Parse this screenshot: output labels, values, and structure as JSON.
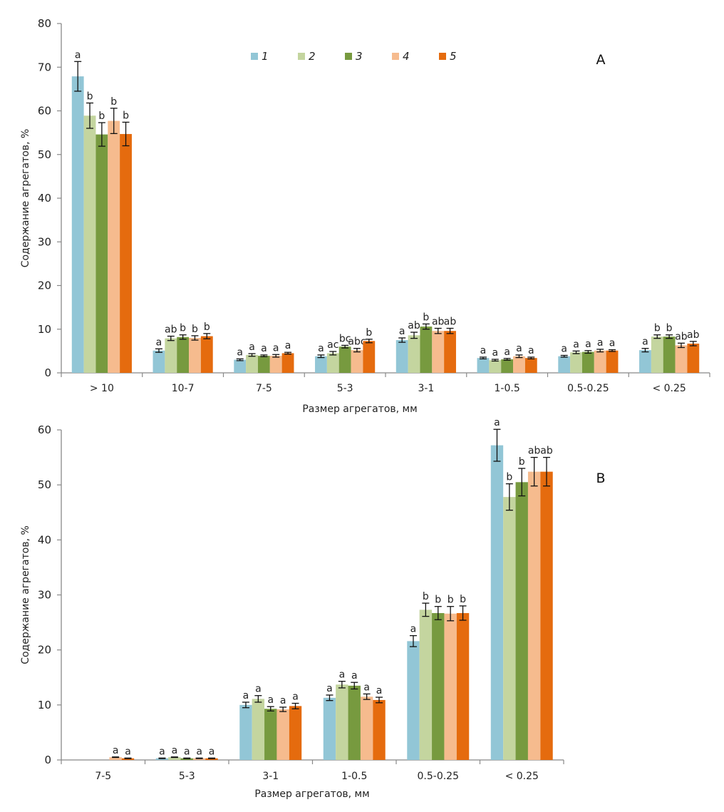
{
  "colors": [
    "#92c6d6",
    "#c4d59f",
    "#779a3f",
    "#f6bb8e",
    "#e56b0e"
  ],
  "legend": [
    "1",
    "2",
    "3",
    "4",
    "5"
  ],
  "chart_data": [
    {
      "type": "bar",
      "panel": "A",
      "title": "",
      "xlabel": "Размер агрегатов, мм",
      "ylabel": "Содержание агрегатов, %",
      "ylim": [
        0,
        80
      ],
      "yticks": [
        0,
        10,
        20,
        30,
        40,
        50,
        60,
        70,
        80
      ],
      "legend_position": "top-center",
      "categories": [
        "> 10",
        "10-7",
        "7-5",
        "5-3",
        "3-1",
        "1-0.5",
        "0.5-0.25",
        "< 0.25"
      ],
      "series": [
        {
          "name": "1",
          "values": [
            67.9,
            5.1,
            3.0,
            3.8,
            7.5,
            3.4,
            3.8,
            5.2
          ],
          "errors": [
            3.4,
            0.4,
            0.2,
            0.3,
            0.5,
            0.2,
            0.2,
            0.4
          ]
        },
        {
          "name": "2",
          "values": [
            58.9,
            7.9,
            4.1,
            4.5,
            8.6,
            2.9,
            4.7,
            8.3
          ],
          "errors": [
            2.9,
            0.5,
            0.3,
            0.4,
            0.7,
            0.2,
            0.3,
            0.4
          ]
        },
        {
          "name": "3",
          "values": [
            54.6,
            8.2,
            3.9,
            6.0,
            10.6,
            3.1,
            4.8,
            8.3
          ],
          "errors": [
            2.7,
            0.5,
            0.2,
            0.3,
            0.6,
            0.2,
            0.3,
            0.4
          ]
        },
        {
          "name": "4",
          "values": [
            57.7,
            8.0,
            3.9,
            5.2,
            9.6,
            3.8,
            5.1,
            6.3
          ],
          "errors": [
            2.9,
            0.5,
            0.3,
            0.4,
            0.6,
            0.3,
            0.3,
            0.5
          ]
        },
        {
          "name": "5",
          "values": [
            54.7,
            8.4,
            4.5,
            7.3,
            9.6,
            3.4,
            5.1,
            6.7
          ],
          "errors": [
            2.7,
            0.6,
            0.2,
            0.4,
            0.6,
            0.2,
            0.2,
            0.5
          ]
        }
      ],
      "significance": [
        [
          "a",
          "b",
          "b",
          "b",
          "b"
        ],
        [
          "a",
          "ab",
          "b",
          "b",
          "b"
        ],
        [
          "a",
          "a",
          "a",
          "a",
          "a"
        ],
        [
          "a",
          "ac",
          "bc",
          "abc",
          "b"
        ],
        [
          "a",
          "ab",
          "b",
          "ab",
          "ab"
        ],
        [
          "a",
          "a",
          "a",
          "a",
          "a"
        ],
        [
          "a",
          "a",
          "a",
          "a",
          "a"
        ],
        [
          "a",
          "b",
          "b",
          "ab",
          "ab"
        ]
      ]
    },
    {
      "type": "bar",
      "panel": "B",
      "title": "",
      "xlabel": "Размер агрегатов, мм",
      "ylabel": "Содержание агрегатов, %",
      "ylim": [
        0,
        60
      ],
      "yticks": [
        0,
        10,
        20,
        30,
        40,
        50,
        60
      ],
      "categories": [
        "7-5",
        "5-3",
        "3-1",
        "1-0.5",
        "0.5-0.25",
        "< 0.25"
      ],
      "series": [
        {
          "name": "1",
          "values": [
            0,
            0.3,
            10.0,
            11.3,
            21.6,
            57.2
          ],
          "errors": [
            0,
            0.05,
            0.5,
            0.5,
            1.0,
            2.9
          ]
        },
        {
          "name": "2",
          "values": [
            0,
            0.5,
            11.1,
            13.7,
            27.3,
            47.8
          ],
          "errors": [
            0,
            0.05,
            0.6,
            0.6,
            1.2,
            2.4
          ]
        },
        {
          "name": "3",
          "values": [
            0,
            0.3,
            9.3,
            13.5,
            26.7,
            50.5
          ],
          "errors": [
            0,
            0.05,
            0.4,
            0.6,
            1.2,
            2.5
          ]
        },
        {
          "name": "4",
          "values": [
            0.5,
            0.3,
            9.2,
            11.5,
            26.6,
            52.4
          ],
          "errors": [
            0.05,
            0.05,
            0.4,
            0.5,
            1.3,
            2.6
          ]
        },
        {
          "name": "5",
          "values": [
            0.3,
            0.3,
            9.8,
            10.9,
            26.7,
            52.4
          ],
          "errors": [
            0.05,
            0.05,
            0.5,
            0.5,
            1.3,
            2.6
          ]
        }
      ],
      "significance": [
        [
          "",
          "",
          "",
          "a",
          "a"
        ],
        [
          "a",
          "a",
          "a",
          "a",
          "a"
        ],
        [
          "a",
          "a",
          "a",
          "a",
          "a"
        ],
        [
          "a",
          "a",
          "a",
          "a",
          "a"
        ],
        [
          "a",
          "b",
          "b",
          "b",
          "b"
        ],
        [
          "a",
          "b",
          "b",
          "ab",
          "ab"
        ]
      ]
    }
  ]
}
